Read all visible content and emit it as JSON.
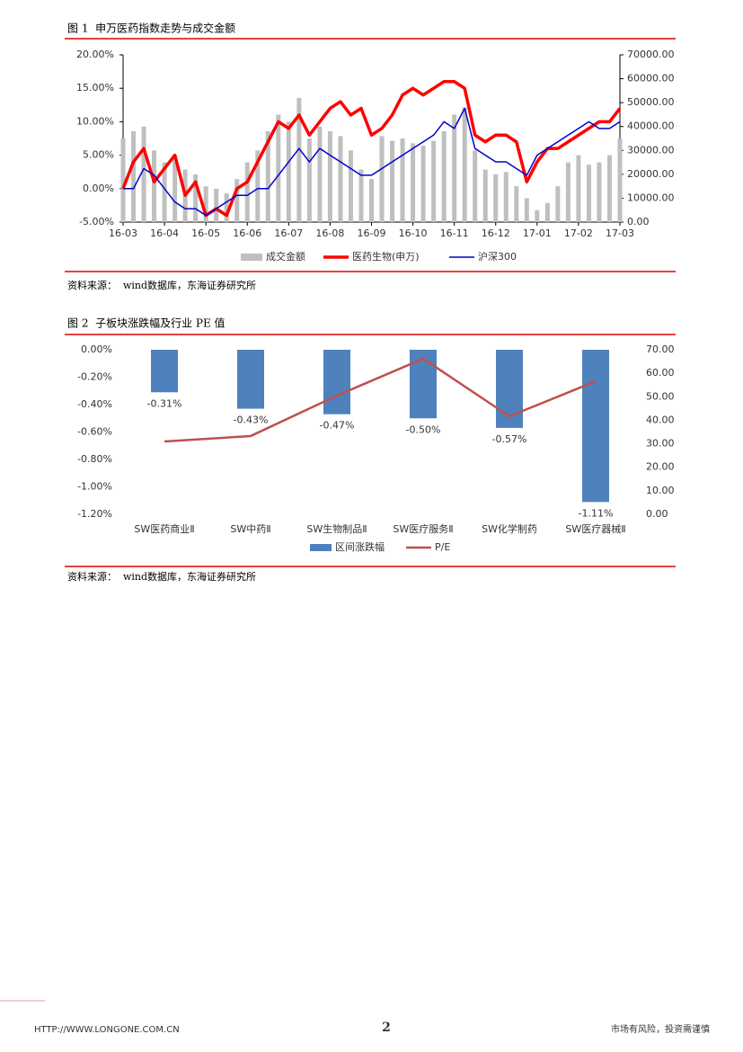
{
  "chart_data": [
    {
      "type": "combo",
      "title": "图 1  申万医药指数走势与成交金额",
      "source": "资料来源：  wind数据库，东海证券研究所",
      "categories": [
        "16-03",
        null,
        null,
        null,
        "16-04",
        null,
        null,
        null,
        "16-05",
        null,
        null,
        null,
        "16-06",
        null,
        null,
        null,
        "16-07",
        null,
        null,
        null,
        "16-08",
        null,
        null,
        null,
        "16-09",
        null,
        null,
        null,
        "16-10",
        null,
        null,
        null,
        "16-11",
        null,
        null,
        null,
        "16-12",
        null,
        null,
        null,
        "17-01",
        null,
        null,
        null,
        "17-02",
        null,
        null,
        null,
        "17-03"
      ],
      "series": [
        {
          "name": "成交金额",
          "type": "bar",
          "axis": "y2",
          "color": "#bfbfbf",
          "values": [
            35000,
            38000,
            40000,
            30000,
            25000,
            28000,
            22000,
            20000,
            15000,
            14000,
            12000,
            18000,
            25000,
            30000,
            38000,
            45000,
            42000,
            52000,
            35000,
            40000,
            38000,
            36000,
            30000,
            22000,
            18000,
            36000,
            34000,
            35000,
            33000,
            32000,
            34000,
            38000,
            45000,
            48000,
            30000,
            22000,
            20000,
            21000,
            15000,
            10000,
            5000,
            8000,
            15000,
            25000,
            28000,
            24000,
            25000,
            28000,
            35000
          ]
        },
        {
          "name": "医药生物(申万)",
          "type": "line",
          "color": "#ff0000",
          "width": 3.5,
          "values": [
            0,
            4,
            6,
            1,
            3,
            5,
            -1,
            1,
            -4,
            -3,
            -4,
            0,
            1,
            4,
            7,
            10,
            9,
            11,
            8,
            10,
            12,
            13,
            11,
            12,
            8,
            9,
            11,
            14,
            15,
            14,
            15,
            16,
            16,
            15,
            8,
            7,
            8,
            8,
            7,
            1,
            4,
            6,
            6,
            7,
            8,
            9,
            10,
            10,
            12
          ]
        },
        {
          "name": "沪深300",
          "type": "line",
          "color": "#0000cc",
          "width": 1.5,
          "values": [
            0,
            0,
            3,
            2,
            0,
            -2,
            -3,
            -3,
            -4,
            -3,
            -2,
            -1,
            -1,
            0,
            0,
            2,
            4,
            6,
            4,
            6,
            5,
            4,
            3,
            2,
            2,
            3,
            4,
            5,
            6,
            7,
            8,
            10,
            9,
            12,
            6,
            5,
            4,
            4,
            3,
            2,
            5,
            6,
            7,
            8,
            9,
            10,
            9,
            9,
            10
          ]
        }
      ],
      "ylim": [
        -5,
        20
      ],
      "yticks": [
        {
          "value": -5,
          "label": "-5.00%"
        },
        {
          "value": 0,
          "label": "0.00%"
        },
        {
          "value": 5,
          "label": "5.00%"
        },
        {
          "value": 10,
          "label": "10.00%"
        },
        {
          "value": 15,
          "label": "15.00%"
        },
        {
          "value": 20,
          "label": "20.00%"
        }
      ],
      "y2lim": [
        0,
        70000
      ],
      "y2ticks": [
        {
          "value": 0,
          "label": "0.00"
        },
        {
          "value": 10000,
          "label": "10000.00"
        },
        {
          "value": 20000,
          "label": "20000.00"
        },
        {
          "value": 30000,
          "label": "30000.00"
        },
        {
          "value": 40000,
          "label": "40000.00"
        },
        {
          "value": 50000,
          "label": "50000.00"
        },
        {
          "value": 60000,
          "label": "60000.00"
        },
        {
          "value": 70000,
          "label": "70000.00"
        }
      ],
      "grid": false
    },
    {
      "type": "combo",
      "title": "图 2  子板块涨跌幅及行业 PE 值",
      "source": "资料来源：  wind数据库，东海证券研究所",
      "categories": [
        "SW医药商业Ⅱ",
        "SW中药Ⅱ",
        "SW生物制品Ⅱ",
        "SW医疗服务Ⅱ",
        "SW化学制药",
        "SW医疗器械Ⅱ"
      ],
      "series": [
        {
          "name": "区间涨跌幅",
          "type": "bar",
          "color": "#4f81bd",
          "values": [
            -0.31,
            -0.43,
            -0.47,
            -0.5,
            -0.57,
            -1.11
          ],
          "value_labels": [
            "-0.31%",
            "-0.43%",
            "-0.47%",
            "-0.50%",
            "-0.57%",
            "-1.11%"
          ]
        },
        {
          "name": "P/E",
          "type": "line",
          "axis": "y2",
          "color": "#c0504d",
          "width": 2.5,
          "values": [
            31,
            33.3,
            50.5,
            66.2,
            41.7,
            56.6
          ]
        }
      ],
      "ylim": [
        -1.2,
        0
      ],
      "yticks": [
        {
          "value": 0,
          "label": "0.00%"
        },
        {
          "value": -0.2,
          "label": "-0.20%"
        },
        {
          "value": -0.4,
          "label": "-0.40%"
        },
        {
          "value": -0.6,
          "label": "-0.60%"
        },
        {
          "value": -0.8,
          "label": "-0.80%"
        },
        {
          "value": -1,
          "label": "-1.00%"
        },
        {
          "value": -1.2,
          "label": "-1.20%"
        }
      ],
      "y2lim": [
        0,
        70
      ],
      "y2ticks": [
        {
          "value": 0,
          "label": "0.00"
        },
        {
          "value": 10,
          "label": "10.00"
        },
        {
          "value": 20,
          "label": "20.00"
        },
        {
          "value": 30,
          "label": "30.00"
        },
        {
          "value": 40,
          "label": "40.00"
        },
        {
          "value": 50,
          "label": "50.00"
        },
        {
          "value": 60,
          "label": "60.00"
        },
        {
          "value": 70,
          "label": "70.00"
        }
      ],
      "grid": false
    }
  ],
  "footer": {
    "url": "HTTP://WWW.LONGONE.COM.CN",
    "page": "2",
    "disclaimer": "市场有风险，投资需谨慎"
  }
}
